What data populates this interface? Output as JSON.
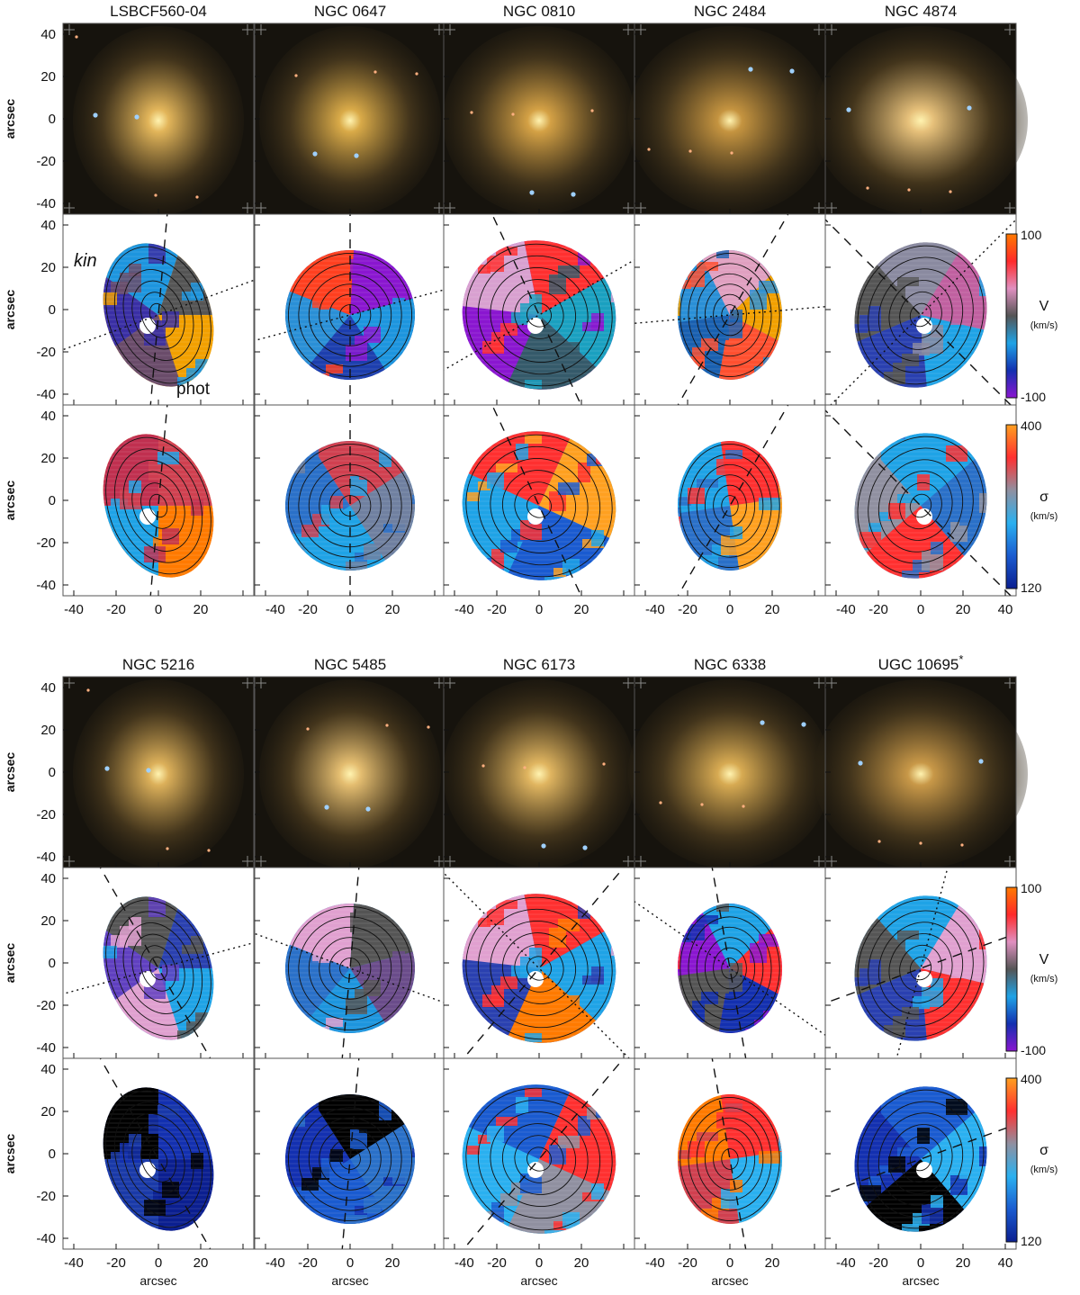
{
  "figure": {
    "colorbars": {
      "velocity": {
        "symbol": "V",
        "unit": "(km/s)",
        "ticks": [
          "100",
          "-100"
        ],
        "colors": [
          "#ff7a00",
          "#ff2a2a",
          "#e090c0",
          "#555555",
          "#1fa3e6",
          "#1330b0",
          "#8a16d0"
        ]
      },
      "dispersion": {
        "symbol": "σ",
        "unit": "(km/s)",
        "ticks": [
          "400",
          "120"
        ],
        "colors": [
          "#ffa020",
          "#ff3030",
          "#9090a0",
          "#2ab0f0",
          "#1a5bd0",
          "#0b1f90"
        ]
      }
    },
    "axis_label": "arcsec",
    "axis_ticks": [
      "40",
      "20",
      "0",
      "-20",
      "-40"
    ],
    "x_tick_labels": [
      "-40",
      "-20",
      "0",
      "20",
      "40"
    ],
    "annotations": {
      "kin": "kin",
      "phot": "phot"
    },
    "blocks": [
      {
        "galaxies": [
          {
            "name": "LSBCF560-04",
            "vel": [
              "#f2a000",
              "#6a4c6a",
              "#3a2fa5",
              "#1d95de",
              "#555555"
            ],
            "sig": [
              "#ff7a00",
              "#1fa3e6",
              "#c03050",
              "#d04050"
            ],
            "pa_kin": 70,
            "pa_phot": 5,
            "glow": "#e2b55a"
          },
          {
            "name": "NGC 0647",
            "vel": [
              "#1d3fae",
              "#2a8fd6",
              "#ff4020",
              "#8a16d0",
              "#1d95de"
            ],
            "sig": [
              "#1fa3e6",
              "#2a70c8",
              "#d04050",
              "#7080a0"
            ],
            "pa_kin": 75,
            "pa_phot": 0,
            "glow": "#d9aa48"
          },
          {
            "name": "NGC 0810",
            "vel": [
              "#8a16d0",
              "#d8a0d0",
              "#ff3030",
              "#1aa0c0",
              "#355a6a"
            ],
            "sig": [
              "#1fa3e6",
              "#ff3030",
              "#ffa020",
              "#1a5bd0"
            ],
            "pa_kin": 60,
            "pa_phot": -25,
            "glow": "#d4a145"
          },
          {
            "name": "NGC 2484",
            "vel": [
              "#2a8fd6",
              "#e0a0c0",
              "#f2a000",
              "#ff5030",
              "#1a60b0"
            ],
            "sig": [
              "#1fa3e6",
              "#ff3030",
              "#ffa020",
              "#2a70c8"
            ],
            "pa_kin": 85,
            "pa_phot": 30,
            "glow": "#c59440"
          },
          {
            "name": "NGC 4874",
            "vel": [
              "#8a8aa0",
              "#c060a0",
              "#1fa3e6",
              "#2a40b0",
              "#555555"
            ],
            "sig": [
              "#1fa3e6",
              "#2a70c8",
              "#ff3030",
              "#9090a0"
            ],
            "pa_kin": 45,
            "pa_phot": -45,
            "glow": "#e6c07a"
          }
        ]
      },
      {
        "galaxies": [
          {
            "name": "NGC 5216",
            "vel": [
              "#1fa3e6",
              "#e0a0d0",
              "#6040c0",
              "#555555",
              "#2a40b0"
            ],
            "sig": [
              "#0b1f90",
              "#1a3aa8",
              "#000000",
              "#1330b0"
            ],
            "pa_kin": 75,
            "pa_phot": -30,
            "glow": "#dcb05a"
          },
          {
            "name": "NGC 5485",
            "vel": [
              "#1d95de",
              "#2a70c8",
              "#e0a0d0",
              "#555555",
              "#6a4c8a"
            ],
            "sig": [
              "#1a5bd0",
              "#1330b0",
              "#000000",
              "#2a70c8"
            ],
            "pa_kin": -70,
            "pa_phot": 5,
            "glow": "#e4bd70"
          },
          {
            "name": "NGC 6173",
            "vel": [
              "#2a40b0",
              "#e0a0d0",
              "#ff3030",
              "#1fa3e6",
              "#ff7a00"
            ],
            "sig": [
              "#2ab0f0",
              "#1a5bd0",
              "#ff3030",
              "#9090a0"
            ],
            "pa_kin": -45,
            "pa_phot": 40,
            "glow": "#e0b560"
          },
          {
            "name": "NGC 6338",
            "vel": [
              "#8a16d0",
              "#1fa3e6",
              "#ff3030",
              "#1330b0",
              "#555555"
            ],
            "sig": [
              "#ff7a00",
              "#ff3030",
              "#2ab0f0",
              "#d04050"
            ],
            "pa_kin": -55,
            "pa_phot": -10,
            "glow": "#d7aa52"
          },
          {
            "name": "UGC 10695",
            "name_suffix": "*",
            "vel": [
              "#1fa3e6",
              "#e0a0d0",
              "#ff3030",
              "#2a40b0",
              "#555555"
            ],
            "sig": [
              "#1a5bd0",
              "#2ab0f0",
              "#000000",
              "#1330b0"
            ],
            "pa_kin": 15,
            "pa_phot": 70,
            "glow": "#c89848"
          }
        ]
      }
    ]
  }
}
